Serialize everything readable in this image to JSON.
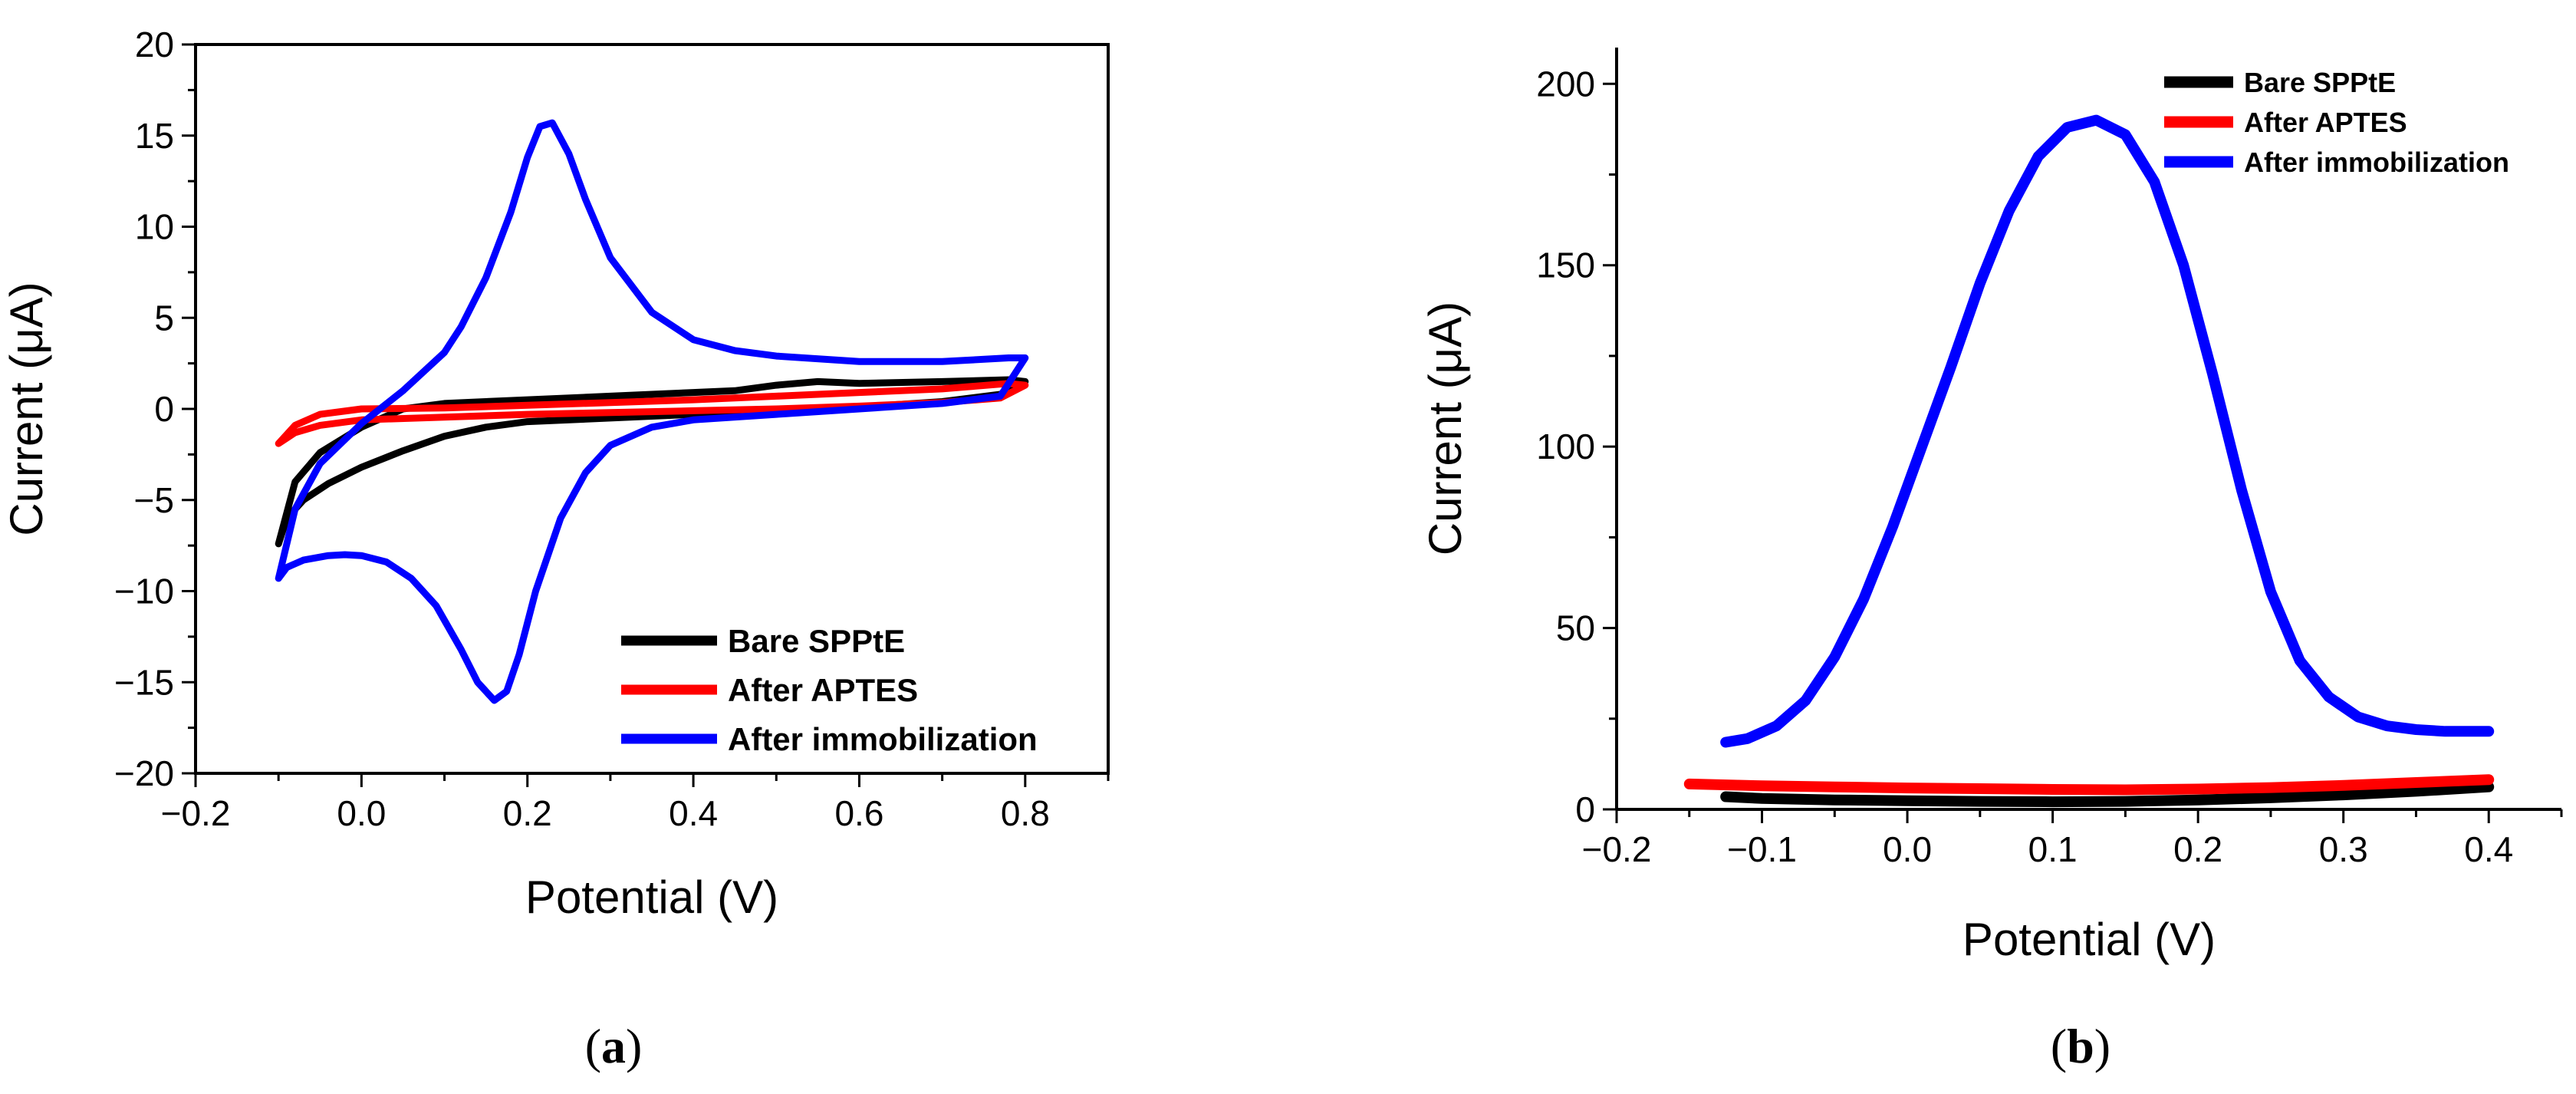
{
  "chart_data": [
    {
      "panel_label": "(a)",
      "panel_label_parts": [
        "(",
        "a",
        ")"
      ],
      "type": "line",
      "title": "",
      "xlabel": "Potential (V)",
      "ylabel": "Current (μA)",
      "xlim": [
        -0.2,
        0.9
      ],
      "ylim": [
        -20,
        20
      ],
      "x_ticks": [
        -0.2,
        0.0,
        0.2,
        0.4,
        0.6,
        0.8
      ],
      "x_tick_labels": [
        "−0.2",
        "0.0",
        "0.2",
        "0.4",
        "0.6",
        "0.8"
      ],
      "y_ticks": [
        -20,
        -15,
        -10,
        -5,
        0,
        5,
        10,
        15,
        20
      ],
      "y_tick_labels": [
        "−20",
        "−15",
        "−10",
        "−5",
        "0",
        "5",
        "10",
        "15",
        "20"
      ],
      "box": true,
      "legend_position": "bottom-right",
      "series": [
        {
          "name": "Bare SPPtE",
          "color": "#000000",
          "points": [
            [
              -0.1,
              -7.4
            ],
            [
              -0.09,
              -6.0
            ],
            [
              -0.07,
              -5.0
            ],
            [
              -0.04,
              -4.1
            ],
            [
              0.0,
              -3.2
            ],
            [
              0.05,
              -2.3
            ],
            [
              0.1,
              -1.5
            ],
            [
              0.15,
              -1.0
            ],
            [
              0.2,
              -0.7
            ],
            [
              0.3,
              -0.5
            ],
            [
              0.4,
              -0.3
            ],
            [
              0.5,
              -0.1
            ],
            [
              0.6,
              0.1
            ],
            [
              0.7,
              0.4
            ],
            [
              0.77,
              0.8
            ],
            [
              0.8,
              1.5
            ],
            [
              0.78,
              1.6
            ],
            [
              0.7,
              1.5
            ],
            [
              0.6,
              1.4
            ],
            [
              0.55,
              1.5
            ],
            [
              0.5,
              1.3
            ],
            [
              0.45,
              1.0
            ],
            [
              0.4,
              0.9
            ],
            [
              0.3,
              0.7
            ],
            [
              0.2,
              0.5
            ],
            [
              0.1,
              0.3
            ],
            [
              0.05,
              0.0
            ],
            [
              0.0,
              -1.0
            ],
            [
              -0.05,
              -2.4
            ],
            [
              -0.08,
              -4.0
            ],
            [
              -0.1,
              -7.4
            ]
          ]
        },
        {
          "name": "After APTES",
          "color": "#ff0000",
          "points": [
            [
              -0.1,
              -1.9
            ],
            [
              -0.08,
              -1.3
            ],
            [
              -0.05,
              -0.9
            ],
            [
              0.0,
              -0.6
            ],
            [
              0.1,
              -0.45
            ],
            [
              0.2,
              -0.3
            ],
            [
              0.3,
              -0.2
            ],
            [
              0.4,
              -0.1
            ],
            [
              0.5,
              0.0
            ],
            [
              0.6,
              0.15
            ],
            [
              0.7,
              0.35
            ],
            [
              0.77,
              0.6
            ],
            [
              0.8,
              1.3
            ],
            [
              0.78,
              1.4
            ],
            [
              0.7,
              1.1
            ],
            [
              0.6,
              0.9
            ],
            [
              0.5,
              0.7
            ],
            [
              0.4,
              0.5
            ],
            [
              0.3,
              0.35
            ],
            [
              0.2,
              0.2
            ],
            [
              0.1,
              0.05
            ],
            [
              0.0,
              0.0
            ],
            [
              -0.05,
              -0.3
            ],
            [
              -0.08,
              -0.9
            ],
            [
              -0.1,
              -1.9
            ]
          ]
        },
        {
          "name": "After immobilization",
          "color": "#0000ff",
          "points": [
            [
              -0.1,
              -9.3
            ],
            [
              -0.09,
              -8.7
            ],
            [
              -0.07,
              -8.3
            ],
            [
              -0.04,
              -8.05
            ],
            [
              -0.02,
              -8.0
            ],
            [
              0.0,
              -8.05
            ],
            [
              0.03,
              -8.4
            ],
            [
              0.06,
              -9.3
            ],
            [
              0.09,
              -10.8
            ],
            [
              0.12,
              -13.2
            ],
            [
              0.14,
              -15.0
            ],
            [
              0.16,
              -16.0
            ],
            [
              0.175,
              -15.5
            ],
            [
              0.19,
              -13.5
            ],
            [
              0.21,
              -10.0
            ],
            [
              0.24,
              -6.0
            ],
            [
              0.27,
              -3.5
            ],
            [
              0.3,
              -2.0
            ],
            [
              0.35,
              -1.0
            ],
            [
              0.4,
              -0.6
            ],
            [
              0.5,
              -0.3
            ],
            [
              0.6,
              0.0
            ],
            [
              0.7,
              0.3
            ],
            [
              0.77,
              0.7
            ],
            [
              0.8,
              2.8
            ],
            [
              0.78,
              2.8
            ],
            [
              0.7,
              2.6
            ],
            [
              0.6,
              2.6
            ],
            [
              0.5,
              2.9
            ],
            [
              0.45,
              3.2
            ],
            [
              0.4,
              3.8
            ],
            [
              0.35,
              5.3
            ],
            [
              0.3,
              8.3
            ],
            [
              0.27,
              11.5
            ],
            [
              0.25,
              14.0
            ],
            [
              0.23,
              15.7
            ],
            [
              0.215,
              15.5
            ],
            [
              0.2,
              13.8
            ],
            [
              0.18,
              10.8
            ],
            [
              0.15,
              7.2
            ],
            [
              0.12,
              4.5
            ],
            [
              0.1,
              3.1
            ],
            [
              0.05,
              1.0
            ],
            [
              0.0,
              -0.8
            ],
            [
              -0.05,
              -3.0
            ],
            [
              -0.08,
              -5.5
            ],
            [
              -0.1,
              -9.3
            ]
          ]
        }
      ]
    },
    {
      "panel_label": "(b)",
      "panel_label_parts": [
        "(",
        "b",
        ")"
      ],
      "type": "line",
      "title": "",
      "xlabel": "Potential (V)",
      "ylabel": "Current (μA)",
      "xlim": [
        -0.2,
        0.45
      ],
      "ylim": [
        0,
        210
      ],
      "x_ticks": [
        -0.2,
        -0.1,
        0.0,
        0.1,
        0.2,
        0.3,
        0.4
      ],
      "x_tick_labels": [
        "−0.2",
        "−0.1",
        "0.0",
        "0.1",
        "0.2",
        "0.3",
        "0.4"
      ],
      "y_ticks": [
        0,
        50,
        100,
        150,
        200
      ],
      "y_tick_labels": [
        "0",
        "50",
        "100",
        "150",
        "200"
      ],
      "box": false,
      "legend_position": "top-right",
      "series": [
        {
          "name": "Bare SPPtE",
          "color": "#000000",
          "points": [
            [
              -0.125,
              3.5
            ],
            [
              -0.1,
              3.0
            ],
            [
              -0.05,
              2.6
            ],
            [
              0.0,
              2.4
            ],
            [
              0.05,
              2.2
            ],
            [
              0.1,
              2.1
            ],
            [
              0.15,
              2.2
            ],
            [
              0.2,
              2.6
            ],
            [
              0.25,
              3.2
            ],
            [
              0.3,
              4.0
            ],
            [
              0.35,
              5.0
            ],
            [
              0.4,
              6.2
            ]
          ]
        },
        {
          "name": "After APTES",
          "color": "#ff0000",
          "points": [
            [
              -0.15,
              7.0
            ],
            [
              -0.1,
              6.5
            ],
            [
              -0.05,
              6.2
            ],
            [
              0.0,
              5.9
            ],
            [
              0.05,
              5.7
            ],
            [
              0.1,
              5.5
            ],
            [
              0.15,
              5.4
            ],
            [
              0.2,
              5.6
            ],
            [
              0.25,
              6.0
            ],
            [
              0.3,
              6.6
            ],
            [
              0.35,
              7.4
            ],
            [
              0.4,
              8.2
            ]
          ]
        },
        {
          "name": "After immobilization",
          "color": "#0000ff",
          "points": [
            [
              -0.125,
              18.5
            ],
            [
              -0.11,
              19.5
            ],
            [
              -0.09,
              23
            ],
            [
              -0.07,
              30
            ],
            [
              -0.05,
              42
            ],
            [
              -0.03,
              58
            ],
            [
              -0.01,
              78
            ],
            [
              0.01,
              100
            ],
            [
              0.03,
              122
            ],
            [
              0.05,
              145
            ],
            [
              0.07,
              165
            ],
            [
              0.09,
              180
            ],
            [
              0.11,
              188
            ],
            [
              0.13,
              190
            ],
            [
              0.15,
              186
            ],
            [
              0.17,
              173
            ],
            [
              0.19,
              150
            ],
            [
              0.21,
              120
            ],
            [
              0.23,
              88
            ],
            [
              0.25,
              60
            ],
            [
              0.27,
              41
            ],
            [
              0.29,
              31
            ],
            [
              0.31,
              25.5
            ],
            [
              0.33,
              23
            ],
            [
              0.35,
              22
            ],
            [
              0.37,
              21.5
            ],
            [
              0.4,
              21.5
            ]
          ]
        }
      ]
    }
  ]
}
